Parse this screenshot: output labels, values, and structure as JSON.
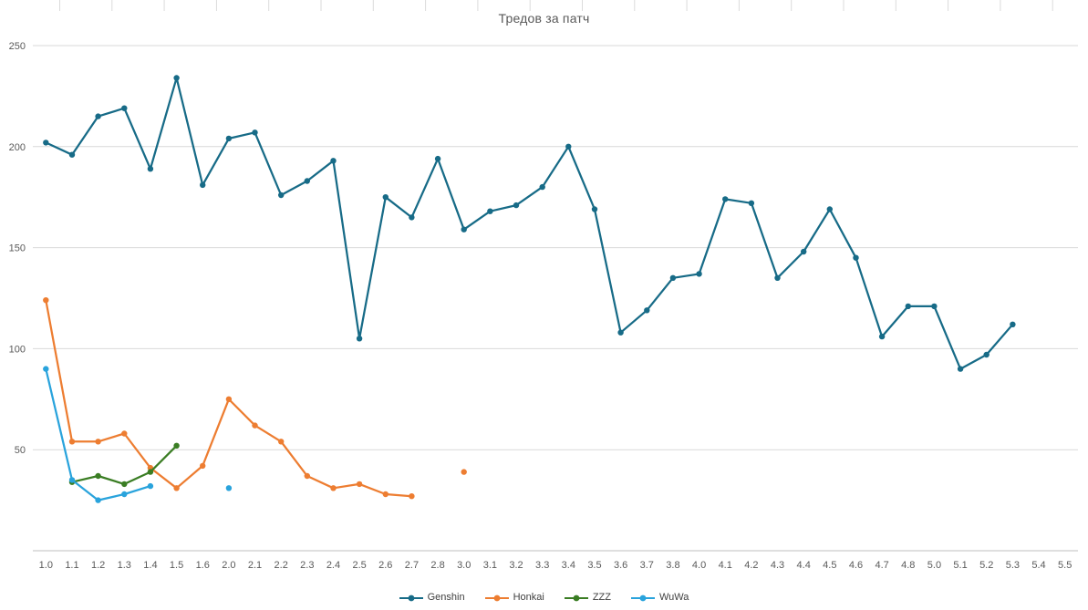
{
  "chart_data": {
    "type": "line",
    "title": "Тредов за патч",
    "xlabel": "",
    "ylabel": "",
    "ylim": [
      0,
      250
    ],
    "yticks": [
      50,
      100,
      150,
      200,
      250
    ],
    "grid": "horizontal",
    "legend_position": "bottom",
    "categories": [
      "1.0",
      "1.1",
      "1.2",
      "1.3",
      "1.4",
      "1.5",
      "1.6",
      "2.0",
      "2.1",
      "2.2",
      "2.3",
      "2.4",
      "2.5",
      "2.6",
      "2.7",
      "2.8",
      "3.0",
      "3.1",
      "3.2",
      "3.3",
      "3.4",
      "3.5",
      "3.6",
      "3.7",
      "3.8",
      "4.0",
      "4.1",
      "4.2",
      "4.3",
      "4.4",
      "4.5",
      "4.6",
      "4.7",
      "4.8",
      "5.0",
      "5.1",
      "5.2",
      "5.3",
      "5.4",
      "5.5"
    ],
    "series": [
      {
        "name": "Genshin",
        "color": "#176B87",
        "values": [
          202,
          196,
          215,
          219,
          189,
          234,
          181,
          204,
          207,
          176,
          183,
          193,
          105,
          175,
          165,
          194,
          159,
          168,
          171,
          180,
          200,
          169,
          108,
          119,
          135,
          137,
          174,
          172,
          135,
          148,
          169,
          145,
          106,
          121,
          121,
          90,
          97,
          112,
          null,
          null
        ]
      },
      {
        "name": "Honkai",
        "color": "#ED7D31",
        "values": [
          124,
          54,
          54,
          58,
          41,
          31,
          42,
          75,
          62,
          54,
          37,
          31,
          33,
          28,
          27,
          null,
          39,
          null,
          null,
          null,
          null,
          null,
          null,
          null,
          null,
          null,
          null,
          null,
          null,
          null,
          null,
          null,
          null,
          null,
          null,
          null,
          null,
          null,
          null,
          null
        ]
      },
      {
        "name": "ZZZ",
        "color": "#3A7D23",
        "values": [
          null,
          34,
          37,
          33,
          39,
          52,
          null,
          null,
          null,
          null,
          null,
          null,
          null,
          null,
          null,
          null,
          null,
          null,
          null,
          null,
          null,
          null,
          null,
          null,
          null,
          null,
          null,
          null,
          null,
          null,
          null,
          null,
          null,
          null,
          null,
          null,
          null,
          null,
          null,
          null
        ]
      },
      {
        "name": "WuWa",
        "color": "#29A3DC",
        "values": [
          90,
          35,
          25,
          28,
          32,
          null,
          null,
          31,
          null,
          null,
          null,
          null,
          null,
          null,
          null,
          null,
          null,
          null,
          null,
          null,
          null,
          null,
          null,
          null,
          null,
          null,
          null,
          null,
          null,
          null,
          null,
          null,
          null,
          null,
          null,
          null,
          null,
          null,
          null,
          null
        ]
      }
    ]
  }
}
